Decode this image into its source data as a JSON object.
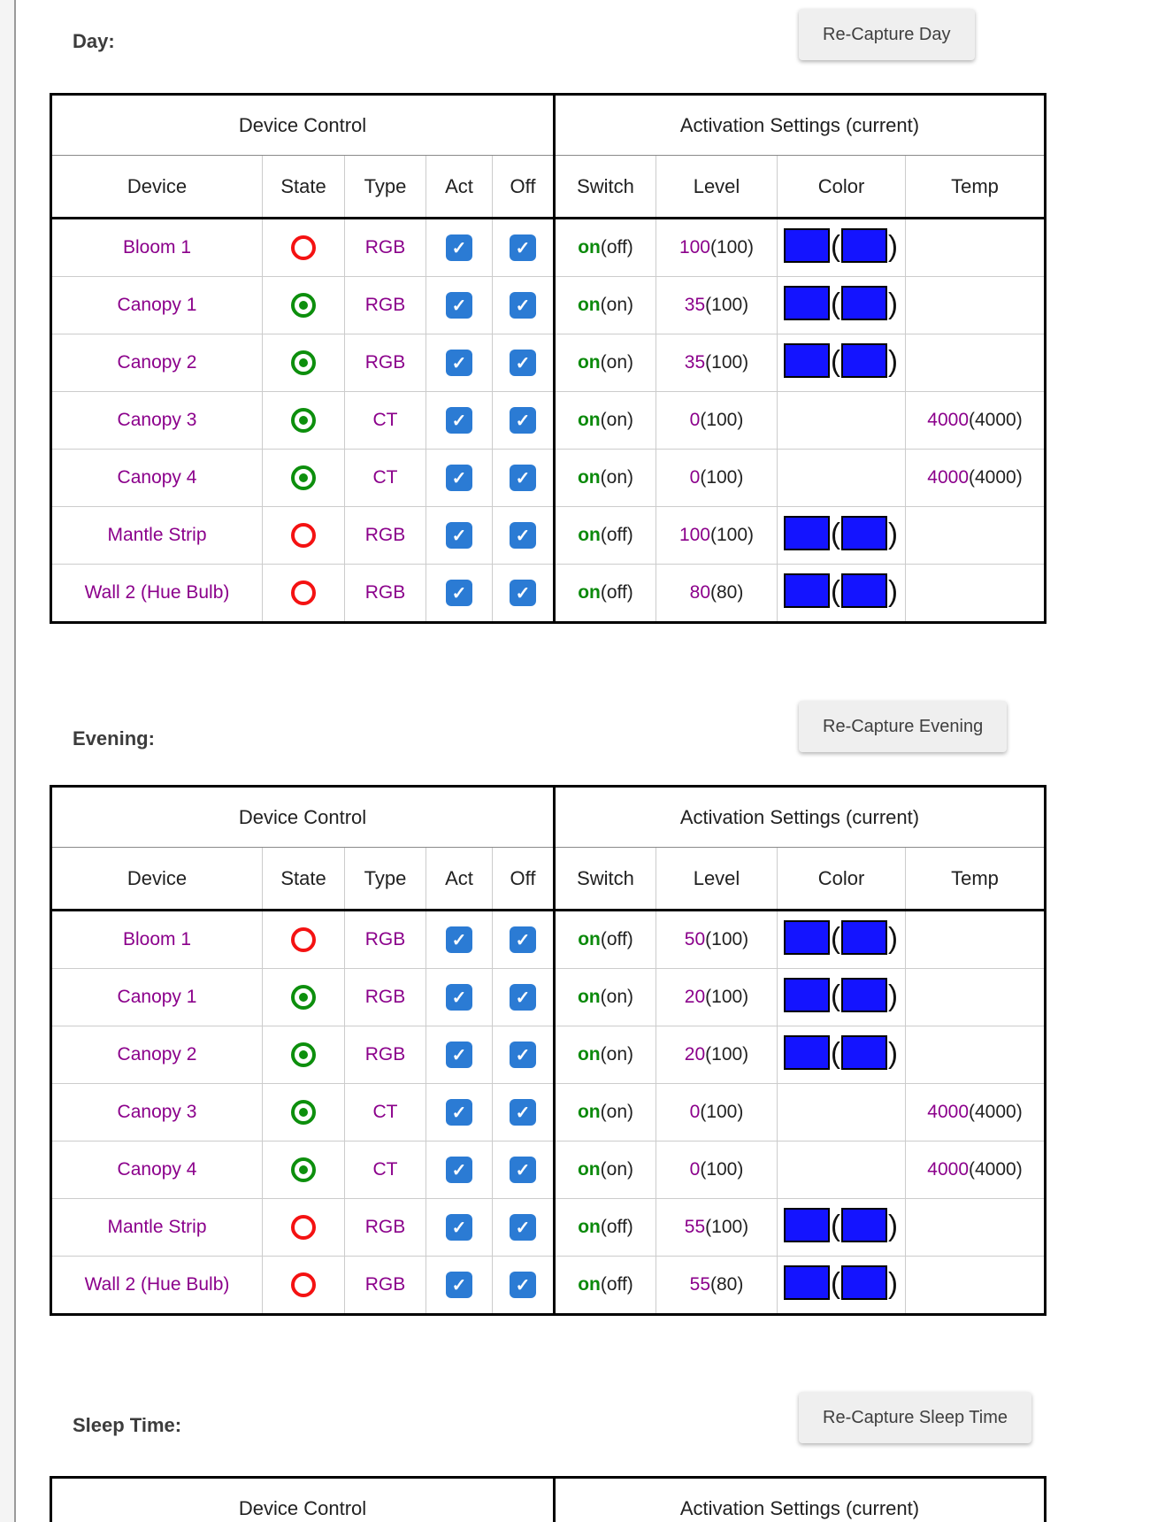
{
  "palette": {
    "device_purple": "#8b008b",
    "on_green": "#0c8a0c",
    "off_red": "#f41212",
    "checkbox_blue": "#2b7bd4",
    "swatch_blue": "#1414ff",
    "button_bg": "#efefef",
    "border_black": "#000000"
  },
  "icons": {
    "checkbox_check": "✓",
    "state_on": "green-dot-circle-icon",
    "state_off": "red-empty-circle-icon"
  },
  "headers": {
    "group_device": "Device Control",
    "group_activation": "Activation Settings (current)",
    "device": "Device",
    "state": "State",
    "type": "Type",
    "act": "Act",
    "off": "Off",
    "switch": "Switch",
    "level": "Level",
    "color": "Color",
    "temp": "Temp"
  },
  "sections": [
    {
      "label": "Day:",
      "button_label": "Re-Capture Day",
      "rows": [
        {
          "device": "Bloom 1",
          "state": "off",
          "type": "RGB",
          "act_checked": true,
          "off_checked": true,
          "switch": {
            "set": "on",
            "current": "off"
          },
          "level": {
            "set": "100",
            "current": "100"
          },
          "color": {
            "set": "#1414ff",
            "current": "#1414ff"
          },
          "temp": null
        },
        {
          "device": "Canopy 1",
          "state": "on",
          "type": "RGB",
          "act_checked": true,
          "off_checked": true,
          "switch": {
            "set": "on",
            "current": "on"
          },
          "level": {
            "set": "35",
            "current": "100"
          },
          "color": {
            "set": "#1414ff",
            "current": "#1414ff"
          },
          "temp": null
        },
        {
          "device": "Canopy 2",
          "state": "on",
          "type": "RGB",
          "act_checked": true,
          "off_checked": true,
          "switch": {
            "set": "on",
            "current": "on"
          },
          "level": {
            "set": "35",
            "current": "100"
          },
          "color": {
            "set": "#1414ff",
            "current": "#1414ff"
          },
          "temp": null
        },
        {
          "device": "Canopy 3",
          "state": "on",
          "type": "CT",
          "act_checked": true,
          "off_checked": true,
          "switch": {
            "set": "on",
            "current": "on"
          },
          "level": {
            "set": "0",
            "current": "100"
          },
          "color": null,
          "temp": {
            "set": "4000",
            "current": "4000"
          }
        },
        {
          "device": "Canopy 4",
          "state": "on",
          "type": "CT",
          "act_checked": true,
          "off_checked": true,
          "switch": {
            "set": "on",
            "current": "on"
          },
          "level": {
            "set": "0",
            "current": "100"
          },
          "color": null,
          "temp": {
            "set": "4000",
            "current": "4000"
          }
        },
        {
          "device": "Mantle Strip",
          "state": "off",
          "type": "RGB",
          "act_checked": true,
          "off_checked": true,
          "switch": {
            "set": "on",
            "current": "off"
          },
          "level": {
            "set": "100",
            "current": "100"
          },
          "color": {
            "set": "#1414ff",
            "current": "#1414ff"
          },
          "temp": null
        },
        {
          "device": "Wall 2 (Hue Bulb)",
          "state": "off",
          "type": "RGB",
          "act_checked": true,
          "off_checked": true,
          "switch": {
            "set": "on",
            "current": "off"
          },
          "level": {
            "set": "80",
            "current": "80"
          },
          "color": {
            "set": "#1414ff",
            "current": "#1414ff"
          },
          "temp": null
        }
      ]
    },
    {
      "label": "Evening:",
      "button_label": "Re-Capture Evening",
      "rows": [
        {
          "device": "Bloom 1",
          "state": "off",
          "type": "RGB",
          "act_checked": true,
          "off_checked": true,
          "switch": {
            "set": "on",
            "current": "off"
          },
          "level": {
            "set": "50",
            "current": "100"
          },
          "color": {
            "set": "#1414ff",
            "current": "#1414ff"
          },
          "temp": null
        },
        {
          "device": "Canopy 1",
          "state": "on",
          "type": "RGB",
          "act_checked": true,
          "off_checked": true,
          "switch": {
            "set": "on",
            "current": "on"
          },
          "level": {
            "set": "20",
            "current": "100"
          },
          "color": {
            "set": "#1414ff",
            "current": "#1414ff"
          },
          "temp": null
        },
        {
          "device": "Canopy 2",
          "state": "on",
          "type": "RGB",
          "act_checked": true,
          "off_checked": true,
          "switch": {
            "set": "on",
            "current": "on"
          },
          "level": {
            "set": "20",
            "current": "100"
          },
          "color": {
            "set": "#1414ff",
            "current": "#1414ff"
          },
          "temp": null
        },
        {
          "device": "Canopy 3",
          "state": "on",
          "type": "CT",
          "act_checked": true,
          "off_checked": true,
          "switch": {
            "set": "on",
            "current": "on"
          },
          "level": {
            "set": "0",
            "current": "100"
          },
          "color": null,
          "temp": {
            "set": "4000",
            "current": "4000"
          }
        },
        {
          "device": "Canopy 4",
          "state": "on",
          "type": "CT",
          "act_checked": true,
          "off_checked": true,
          "switch": {
            "set": "on",
            "current": "on"
          },
          "level": {
            "set": "0",
            "current": "100"
          },
          "color": null,
          "temp": {
            "set": "4000",
            "current": "4000"
          }
        },
        {
          "device": "Mantle Strip",
          "state": "off",
          "type": "RGB",
          "act_checked": true,
          "off_checked": true,
          "switch": {
            "set": "on",
            "current": "off"
          },
          "level": {
            "set": "55",
            "current": "100"
          },
          "color": {
            "set": "#1414ff",
            "current": "#1414ff"
          },
          "temp": null
        },
        {
          "device": "Wall 2 (Hue Bulb)",
          "state": "off",
          "type": "RGB",
          "act_checked": true,
          "off_checked": true,
          "switch": {
            "set": "on",
            "current": "off"
          },
          "level": {
            "set": "55",
            "current": "80"
          },
          "color": {
            "set": "#1414ff",
            "current": "#1414ff"
          },
          "temp": null
        }
      ]
    },
    {
      "label": "Sleep Time:",
      "button_label": "Re-Capture Sleep Time",
      "rows": []
    }
  ]
}
